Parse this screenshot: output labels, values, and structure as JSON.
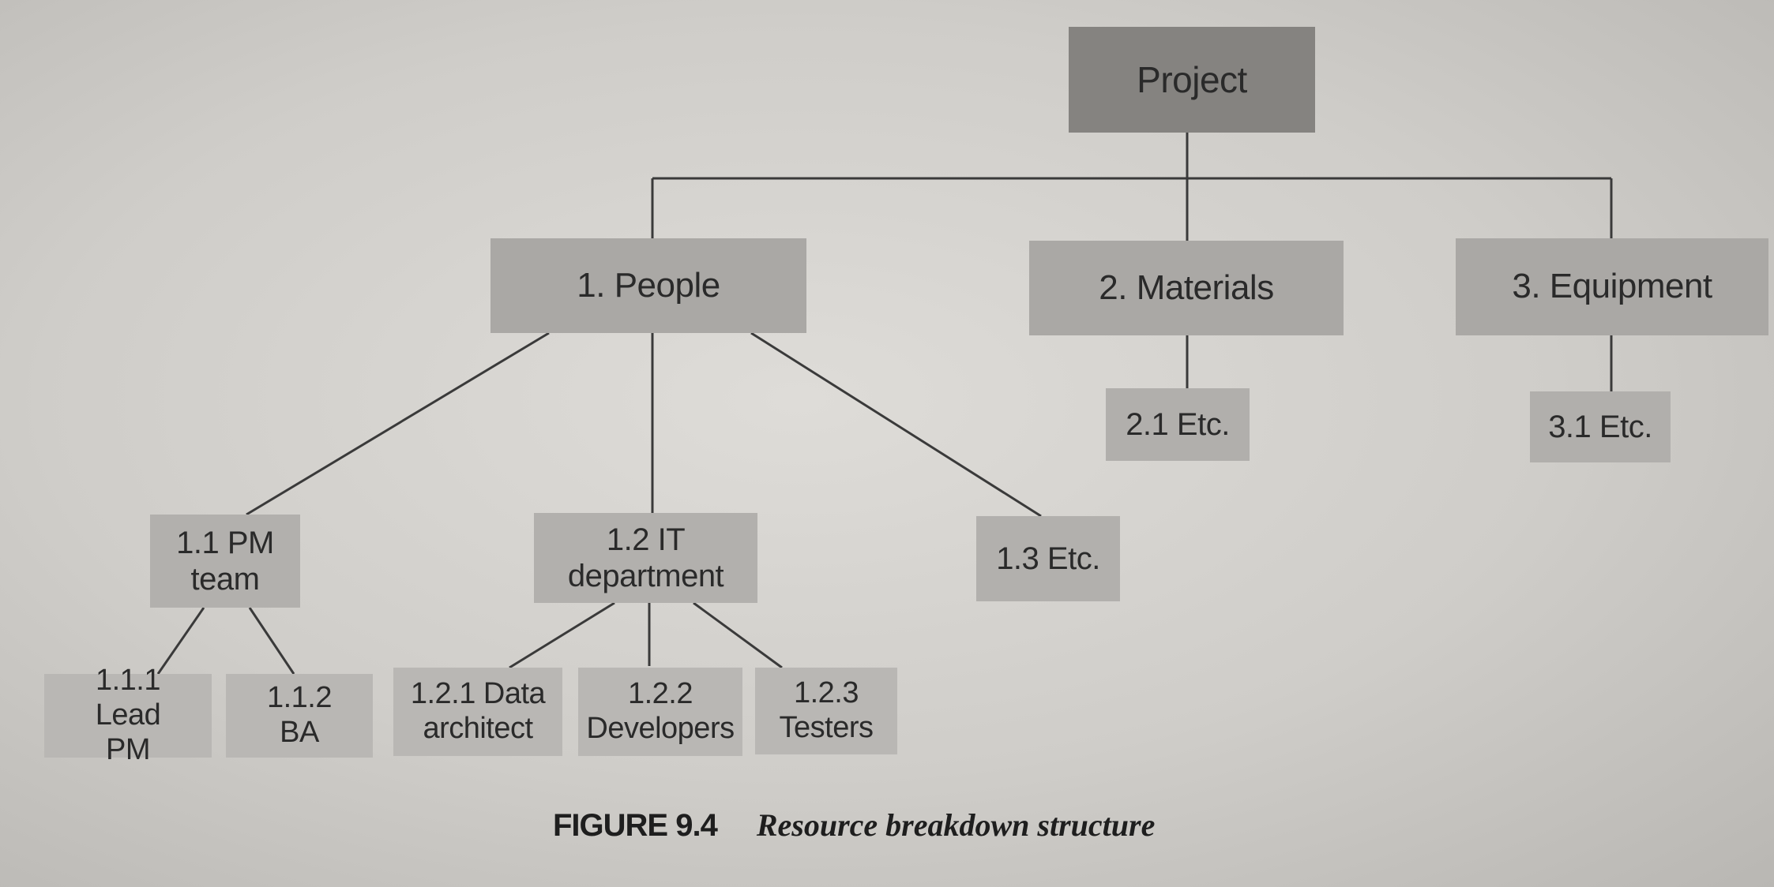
{
  "diagram": {
    "type": "tree",
    "root": {
      "label": "Project"
    },
    "level1": [
      {
        "id": "1",
        "label": "1. People"
      },
      {
        "id": "2",
        "label": "2. Materials"
      },
      {
        "id": "3",
        "label": "3. Equipment"
      }
    ],
    "level2": [
      {
        "id": "1.1",
        "label": "1.1 PM team",
        "parent": "1"
      },
      {
        "id": "1.2",
        "label": "1.2 IT department",
        "parent": "1"
      },
      {
        "id": "1.3",
        "label": "1.3 Etc.",
        "parent": "1"
      },
      {
        "id": "2.1",
        "label": "2.1 Etc.",
        "parent": "2"
      },
      {
        "id": "3.1",
        "label": "3.1 Etc.",
        "parent": "3"
      }
    ],
    "level3": [
      {
        "id": "1.1.1",
        "label": "1.1.1 Lead PM",
        "parent": "1.1"
      },
      {
        "id": "1.1.2",
        "label": "1.1.2 BA",
        "parent": "1.1"
      },
      {
        "id": "1.2.1",
        "label": "1.2.1 Data architect",
        "parent": "1.2"
      },
      {
        "id": "1.2.2",
        "label": "1.2.2 Developers",
        "parent": "1.2"
      },
      {
        "id": "1.2.3",
        "label": "1.2.3 Testers",
        "parent": "1.2"
      }
    ]
  },
  "caption": {
    "label": "FIGURE 9.4",
    "title": "Resource breakdown structure"
  }
}
